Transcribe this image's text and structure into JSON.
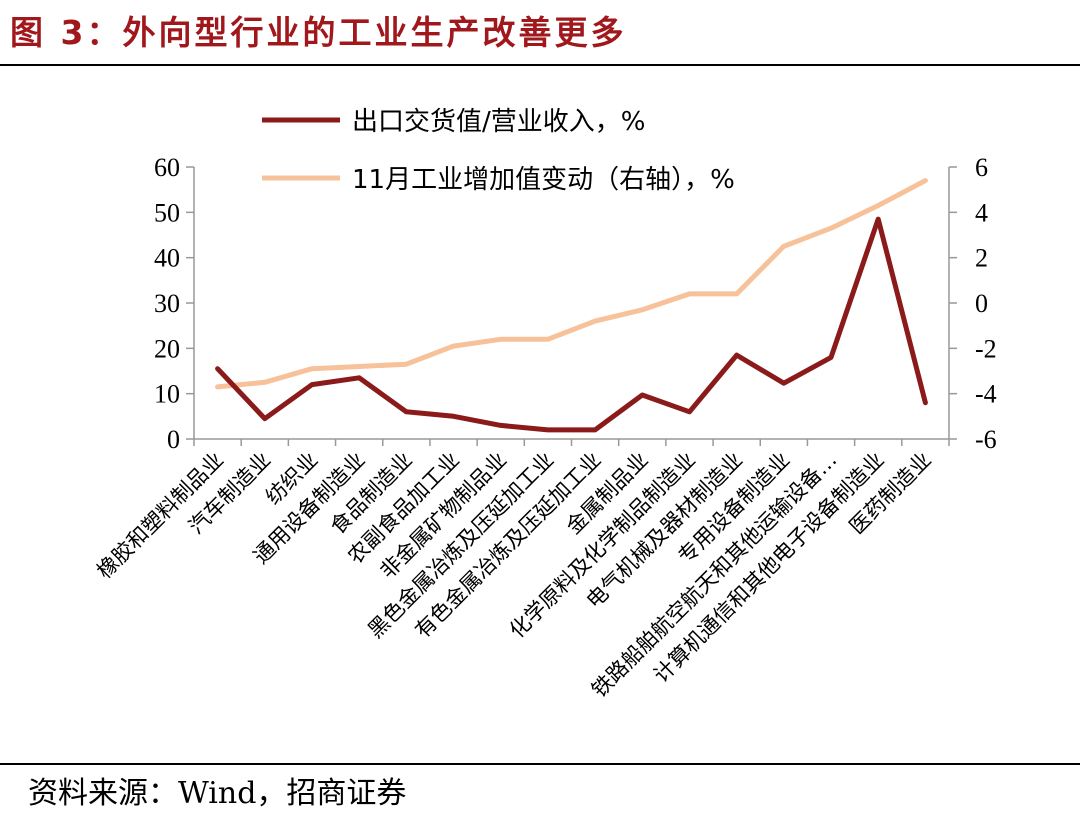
{
  "header": {
    "title": "图 3：外向型行业的工业生产改善更多"
  },
  "footer": {
    "source": "资料来源：Wind，招商证券"
  },
  "chart_data": {
    "type": "line",
    "categories": [
      "橡胶和塑料制品业",
      "汽车制造业",
      "纺织业",
      "通用设备制造业",
      "食品制造业",
      "农副食品加工业",
      "非金属矿物制品业",
      "黑色金属冶炼及压延加工业",
      "有色金属冶炼及压延加工业",
      "金属制品业",
      "化学原料及化学制品制造业",
      "电气机械及器材制造业",
      "专用设备制造业",
      "铁路船舶航空航天和其他运输设备…",
      "计算机通信和其他电子设备制造业",
      "医药制造业"
    ],
    "series": [
      {
        "name": "出口交货值/营业收入，%",
        "axis": "left",
        "color": "#8b1a1a",
        "values": [
          15.5,
          4.5,
          12,
          13.5,
          6,
          5,
          3,
          2,
          2,
          9.7,
          6,
          18.5,
          12.3,
          18,
          48.5,
          8
        ]
      },
      {
        "name": "11月工业增加值变动（右轴），%",
        "axis": "right",
        "color": "#f7c19a",
        "values": [
          -3.7,
          -3.5,
          -2.9,
          -2.8,
          -2.7,
          -1.9,
          -1.6,
          -1.6,
          -0.8,
          -0.3,
          0.4,
          0.4,
          2.5,
          3.3,
          4.3,
          5.4
        ]
      }
    ],
    "y_left": {
      "min": 0,
      "max": 60,
      "ticks": [
        0,
        10,
        20,
        30,
        40,
        50,
        60
      ]
    },
    "y_right": {
      "min": -6,
      "max": 6,
      "ticks": [
        -6,
        -4,
        -2,
        0,
        2,
        4,
        6
      ]
    },
    "legend_position": "top",
    "grid": false
  }
}
